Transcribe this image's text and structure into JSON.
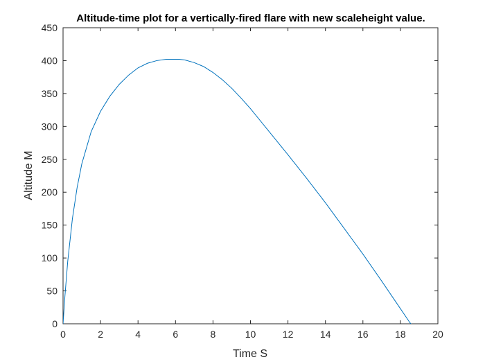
{
  "chart_data": {
    "type": "line",
    "title": "Altitude-time plot for a vertically-fired flare with new scaleheight value.",
    "xlabel": "Time S",
    "ylabel": "Altitude M",
    "xlim": [
      0,
      20
    ],
    "ylim": [
      0,
      450
    ],
    "xticks": [
      0,
      2,
      4,
      6,
      8,
      10,
      12,
      14,
      16,
      18,
      20
    ],
    "yticks": [
      0,
      50,
      100,
      150,
      200,
      250,
      300,
      350,
      400,
      450
    ],
    "grid": false,
    "line_color": "#0072BD",
    "series": [
      {
        "x": [
          0,
          0.1,
          0.25,
          0.5,
          0.75,
          1,
          1.5,
          2,
          2.5,
          3,
          3.5,
          4,
          4.5,
          5,
          5.5,
          6,
          6.2,
          6.5,
          7,
          7.5,
          8,
          8.5,
          9,
          9.5,
          10,
          11,
          12,
          13,
          14,
          15,
          16,
          17,
          18,
          18.5,
          19
        ],
        "y": [
          0,
          42,
          95,
          160,
          207,
          243,
          292,
          323,
          346,
          364,
          378,
          389,
          396,
          400,
          402,
          402,
          402,
          401,
          397,
          391,
          382,
          371,
          358,
          343,
          327,
          292,
          257,
          221,
          184,
          145,
          106,
          65,
          23,
          2,
          -15
        ]
      }
    ]
  }
}
